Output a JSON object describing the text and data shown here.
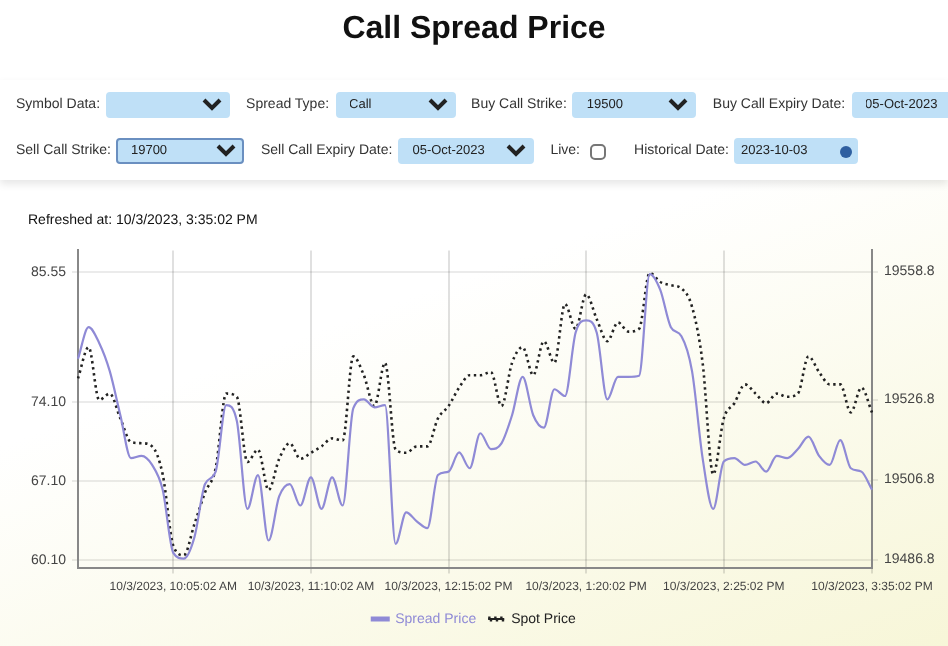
{
  "chart_data": {
    "type": "line",
    "title": "Call Spread Price",
    "annotations": [
      "Symbol Data:",
      "Spread Type:",
      "Call",
      "Buy Call Strike:",
      "19500",
      "Buy Call Expiry Date:",
      "05-Oct-2023",
      "Sell Call Strike:",
      "19700",
      "Sell Call Expiry Date:",
      "05-Oct-2023",
      "Live:",
      "Historical Date:",
      "2023-10-03",
      "Refreshed at: 10/3/2023, 3:35:02 PM"
    ],
    "categories": [
      null,
      null,
      null,
      null,
      null,
      null,
      null,
      null,
      null,
      "10/3/2023, 10:05:02 AM",
      null,
      null,
      null,
      null,
      null,
      null,
      null,
      null,
      null,
      null,
      null,
      null,
      "10/3/2023, 11:10:02 AM",
      null,
      null,
      null,
      null,
      null,
      null,
      null,
      null,
      null,
      null,
      null,
      null,
      "10/3/2023, 12:15:02 PM",
      null,
      null,
      null,
      null,
      null,
      null,
      null,
      null,
      null,
      null,
      null,
      null,
      "10/3/2023, 1:20:02 PM",
      null,
      null,
      null,
      null,
      null,
      null,
      null,
      null,
      null,
      null,
      null,
      null,
      "10/3/2023, 2:25:02 PM",
      null,
      null,
      null,
      null,
      null,
      null,
      null,
      null,
      null,
      null,
      null,
      null,
      null,
      "10/3/2023, 3:35:02 PM"
    ],
    "series": [
      {
        "name": "Spread Price",
        "color": "#8f8ad6",
        "line_style": "solid",
        "values": [
          77.9,
          80.7,
          79.3,
          76.8,
          72.9,
          69.1,
          69.3,
          68.5,
          66.3,
          60.7,
          60.2,
          62.1,
          66.8,
          67.9,
          73.8,
          72.4,
          64.6,
          67.6,
          61.8,
          65.7,
          66.8,
          64.9,
          67.4,
          64.6,
          67.4,
          64.9,
          73.5,
          74.3,
          73.6,
          73.8,
          61.5,
          64.3,
          63.5,
          62.9,
          67.6,
          67.9,
          69.6,
          68.2,
          71.3,
          69.9,
          70.4,
          72.9,
          76.3,
          72.9,
          71.8,
          75.2,
          74.6,
          80.2,
          81.3,
          80.2,
          74.3,
          76.3,
          76.3,
          76.4,
          85.4,
          84.0,
          80.7,
          79.9,
          76.8,
          69.1,
          64.6,
          68.8,
          69.1,
          68.5,
          68.8,
          67.9,
          69.3,
          69.1,
          69.9,
          71.0,
          69.3,
          68.5,
          70.7,
          68.2,
          67.9,
          66.3
        ]
      },
      {
        "name": "Spot Price",
        "color": "#222222",
        "line_style": "dotted",
        "axis": "y2",
        "values": [
          19532.1,
          19539.9,
          19526.7,
          19528.3,
          19522.1,
          19516.2,
          19515.9,
          19515.1,
          19508.1,
          19490.3,
          19487.9,
          19495.7,
          19503.6,
          19509.6,
          19528.3,
          19527.5,
          19511.2,
          19514.3,
          19504.2,
          19512.0,
          19515.9,
          19512.0,
          19513.5,
          19515.1,
          19517.1,
          19516.6,
          19537.6,
          19532.9,
          19525.2,
          19536.0,
          19514.3,
          19513.5,
          19515.1,
          19515.1,
          19522.1,
          19525.2,
          19529.8,
          19532.9,
          19532.9,
          19533.7,
          19525.2,
          19536.0,
          19539.9,
          19532.9,
          19541.4,
          19536.0,
          19550.7,
          19544.5,
          19553.1,
          19546.9,
          19541.4,
          19546.1,
          19543.8,
          19544.5,
          19558.5,
          19556.2,
          19555.4,
          19554.6,
          19550.0,
          19536.0,
          19508.1,
          19522.1,
          19525.9,
          19530.6,
          19528.3,
          19525.9,
          19528.3,
          19527.5,
          19528.3,
          19537.6,
          19533.7,
          19530.6,
          19530.6,
          19523.6,
          19529.8,
          19523.6
        ]
      }
    ],
    "ylim": [
      59.4,
      87.5
    ],
    "yticks": [
      {
        "value": 60.1,
        "label": "60.10"
      },
      {
        "value": 67.1,
        "label": "67.10"
      },
      {
        "value": 74.1,
        "label": "74.10"
      },
      85.55
    ],
    "y2lim": [
      19484.8,
      19564.1
    ],
    "y2ticks": [
      19486.8,
      19506.8,
      19526.8,
      19558.8
    ],
    "grid": true,
    "legend": "bottom",
    "marker": "none"
  }
}
